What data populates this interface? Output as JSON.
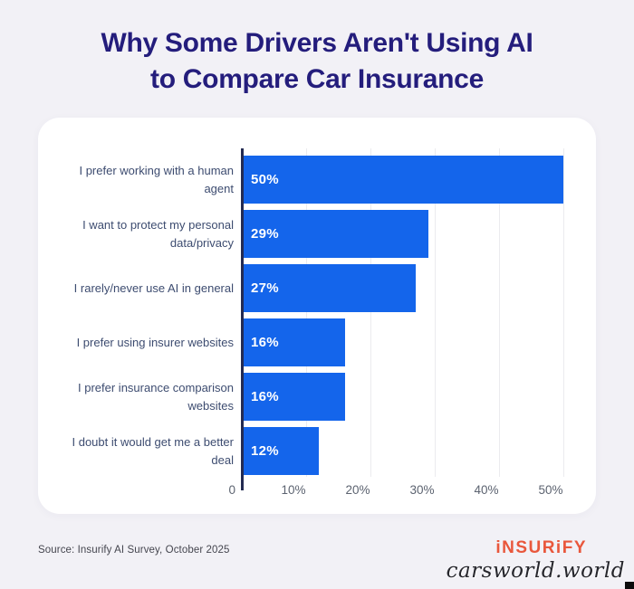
{
  "header": {
    "title_line1": "Why Some Drivers Aren't Using AI",
    "title_line2": "to Compare Car Insurance"
  },
  "chart_data": {
    "type": "bar",
    "orientation": "horizontal",
    "title": "Why Some Drivers Aren't Using AI to Compare Car Insurance",
    "categories": [
      "I prefer working with a human agent",
      "I want to protect my personal data/privacy",
      "I rarely/never use AI in general",
      "I prefer using insurer websites",
      "I prefer insurance comparison websites",
      "I doubt it would get me a better deal"
    ],
    "values": [
      50,
      29,
      27,
      16,
      16,
      12
    ],
    "value_labels": [
      "50%",
      "29%",
      "27%",
      "16%",
      "16%",
      "12%"
    ],
    "x_tick_values": [
      0,
      10,
      20,
      30,
      40,
      50
    ],
    "x_tick_labels": [
      "0",
      "10%",
      "20%",
      "30%",
      "40%",
      "50%"
    ],
    "xlim": [
      0,
      51.5
    ],
    "grid": "vertical",
    "legend": "none",
    "bar_color": "#1465eb",
    "axis_color": "#232b52",
    "gridline_color": "#ebebee"
  },
  "footer": {
    "source": "Source: Insurify AI Survey, October 2025",
    "logo_text": "iNSURiFY",
    "watermark": "carsworld.world"
  },
  "colors": {
    "page_background": "#f2f1f6",
    "card_background": "#ffffff",
    "title_text": "#241d7c",
    "category_label_text": "#3d4c70",
    "bar_value_text": "#ffffff",
    "logo_accent": "#e9573c"
  }
}
